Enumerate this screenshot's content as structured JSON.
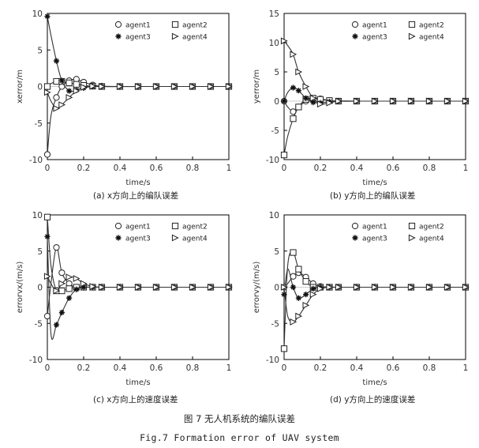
{
  "figure": {
    "caption_cn": "图 7 无人机系统的编队误差",
    "caption_en": "Fig.7 Formation error of UAV system"
  },
  "chart_data": [
    {
      "type": "line",
      "caption": "(a) x方向上的编队误差",
      "xlabel": "time/s",
      "ylabel": "xerror/m",
      "xlim": [
        0,
        1
      ],
      "ylim": [
        -10,
        10
      ],
      "x_ticks": [
        "0",
        "0.2",
        "0.4",
        "0.6",
        "0.8",
        "1"
      ],
      "y_ticks": [
        "10",
        "5",
        "0",
        "-5",
        "-10"
      ],
      "legend_position": "top-right",
      "series": [
        {
          "name": "agent1",
          "marker": "circle",
          "x": [
            0,
            0.02,
            0.05,
            0.08,
            0.12,
            0.16,
            0.2,
            0.25,
            0.3,
            0.4,
            0.5,
            0.6,
            0.7,
            0.8,
            0.9,
            1
          ],
          "y": [
            -9.3,
            -4,
            -1.5,
            0,
            0.8,
            1.0,
            0.6,
            0.2,
            0.05,
            0,
            0,
            0,
            0,
            0,
            0,
            0
          ]
        },
        {
          "name": "agent2",
          "marker": "square",
          "x": [
            0,
            0.02,
            0.05,
            0.08,
            0.12,
            0.16,
            0.2,
            0.25,
            0.3,
            0.4,
            0.5,
            0.6,
            0.7,
            0.8,
            0.9,
            1
          ],
          "y": [
            0,
            0.4,
            0.7,
            0.7,
            0.5,
            0.3,
            0.15,
            0.05,
            0,
            0,
            0,
            0,
            0,
            0,
            0,
            0
          ]
        },
        {
          "name": "agent3",
          "marker": "asterisk",
          "x": [
            0,
            0.02,
            0.05,
            0.08,
            0.12,
            0.16,
            0.2,
            0.25,
            0.3,
            0.4,
            0.5,
            0.6,
            0.7,
            0.8,
            0.9,
            1
          ],
          "y": [
            9.6,
            7,
            3.5,
            0.8,
            -0.6,
            -0.5,
            -0.2,
            0,
            0,
            0,
            0,
            0,
            0,
            0,
            0,
            0
          ]
        },
        {
          "name": "agent4",
          "marker": "triangle-right",
          "x": [
            0,
            0.02,
            0.05,
            0.08,
            0.12,
            0.16,
            0.2,
            0.25,
            0.3,
            0.4,
            0.5,
            0.6,
            0.7,
            0.8,
            0.9,
            1
          ],
          "y": [
            -0.8,
            -2,
            -3,
            -2.5,
            -1.5,
            -0.6,
            -0.1,
            0.05,
            0,
            0,
            0,
            0,
            0,
            0,
            0,
            0
          ]
        }
      ]
    },
    {
      "type": "line",
      "caption": "(b) y方向上的编队误差",
      "xlabel": "time/s",
      "ylabel": "yerror/m",
      "xlim": [
        0,
        1
      ],
      "ylim": [
        -10,
        15
      ],
      "x_ticks": [
        "0",
        "0.2",
        "0.4",
        "0.6",
        "0.8",
        "1"
      ],
      "y_ticks": [
        "15",
        "10",
        "5",
        "0",
        "-5",
        "-10"
      ],
      "legend_position": "top-right",
      "series": [
        {
          "name": "agent1",
          "marker": "circle",
          "x": [
            0,
            0.02,
            0.05,
            0.08,
            0.12,
            0.16,
            0.2,
            0.25,
            0.3,
            0.4,
            0.5,
            0.6,
            0.7,
            0.8,
            0.9,
            1
          ],
          "y": [
            0,
            -1,
            -1.8,
            -1,
            0,
            0.5,
            0.4,
            0.1,
            0,
            0,
            0,
            0,
            0,
            0,
            0,
            0
          ]
        },
        {
          "name": "agent2",
          "marker": "square",
          "x": [
            0,
            0.02,
            0.05,
            0.08,
            0.12,
            0.16,
            0.2,
            0.25,
            0.3,
            0.4,
            0.5,
            0.6,
            0.7,
            0.8,
            0.9,
            1
          ],
          "y": [
            -9.2,
            -6,
            -3,
            -1,
            0.3,
            0.5,
            0.3,
            0.1,
            0,
            0,
            0,
            0,
            0,
            0,
            0,
            0
          ]
        },
        {
          "name": "agent3",
          "marker": "asterisk",
          "x": [
            0,
            0.02,
            0.05,
            0.08,
            0.12,
            0.16,
            0.2,
            0.25,
            0.3,
            0.4,
            0.5,
            0.6,
            0.7,
            0.8,
            0.9,
            1
          ],
          "y": [
            0,
            1.5,
            2.3,
            1.8,
            0.5,
            -0.2,
            -0.3,
            -0.1,
            0,
            0,
            0,
            0,
            0,
            0,
            0,
            0
          ]
        },
        {
          "name": "agent4",
          "marker": "triangle-right",
          "x": [
            0,
            0.02,
            0.05,
            0.08,
            0.12,
            0.16,
            0.2,
            0.25,
            0.3,
            0.4,
            0.5,
            0.6,
            0.7,
            0.8,
            0.9,
            1
          ],
          "y": [
            10.3,
            9.5,
            8,
            5,
            2.5,
            0.5,
            -0.5,
            -0.3,
            0,
            0,
            0,
            0,
            0,
            0,
            0,
            0
          ]
        }
      ]
    },
    {
      "type": "line",
      "caption": "(c) x方向上的速度误差",
      "xlabel": "time/s",
      "ylabel": "errorvx/(m/s)",
      "xlim": [
        0,
        1
      ],
      "ylim": [
        -10,
        10
      ],
      "x_ticks": [
        "0",
        "0.2",
        "0.4",
        "0.6",
        "0.8",
        "1"
      ],
      "y_ticks": [
        "10",
        "5",
        "0",
        "-5",
        "-10"
      ],
      "legend_position": "top-right",
      "series": [
        {
          "name": "agent1",
          "marker": "circle",
          "x": [
            0,
            0.02,
            0.05,
            0.08,
            0.12,
            0.16,
            0.2,
            0.25,
            0.3,
            0.4,
            0.5,
            0.6,
            0.7,
            0.8,
            0.9,
            1
          ],
          "y": [
            -4,
            0.5,
            5.5,
            2,
            0.5,
            0,
            0,
            0,
            0,
            0,
            0,
            0,
            0,
            0,
            0,
            0
          ]
        },
        {
          "name": "agent2",
          "marker": "square",
          "x": [
            0,
            0.02,
            0.05,
            0.08,
            0.12,
            0.16,
            0.2,
            0.25,
            0.3,
            0.4,
            0.5,
            0.6,
            0.7,
            0.8,
            0.9,
            1
          ],
          "y": [
            9.7,
            3,
            -0.5,
            -0.5,
            -0.2,
            0,
            0,
            0,
            0,
            0,
            0,
            0,
            0,
            0,
            0,
            0
          ]
        },
        {
          "name": "agent3",
          "marker": "asterisk",
          "x": [
            0,
            0.02,
            0.05,
            0.08,
            0.12,
            0.16,
            0.2,
            0.25,
            0.3,
            0.4,
            0.5,
            0.6,
            0.7,
            0.8,
            0.9,
            1
          ],
          "y": [
            7,
            -6.5,
            -5.2,
            -3.5,
            -1.5,
            -0.3,
            0,
            0,
            0,
            0,
            0,
            0,
            0,
            0,
            0,
            0
          ]
        },
        {
          "name": "agent4",
          "marker": "triangle-right",
          "x": [
            0,
            0.02,
            0.05,
            0.08,
            0.12,
            0.16,
            0.2,
            0.25,
            0.3,
            0.4,
            0.5,
            0.6,
            0.7,
            0.8,
            0.9,
            1
          ],
          "y": [
            1.5,
            0.5,
            -0.5,
            0.5,
            1.4,
            1.2,
            0.5,
            0.1,
            0,
            0,
            0,
            0,
            0,
            0,
            0,
            0
          ]
        }
      ]
    },
    {
      "type": "line",
      "caption": "(d) y方向上的速度误差",
      "xlabel": "time/s",
      "ylabel": "errorvy/(m/s)",
      "xlim": [
        0,
        1
      ],
      "ylim": [
        -10,
        10
      ],
      "x_ticks": [
        "0",
        "0.2",
        "0.4",
        "0.6",
        "0.8",
        "1"
      ],
      "y_ticks": [
        "10",
        "5",
        "0",
        "-5",
        "-10"
      ],
      "legend_position": "top-right",
      "series": [
        {
          "name": "agent1",
          "marker": "circle",
          "x": [
            0,
            0.02,
            0.05,
            0.08,
            0.12,
            0.16,
            0.2,
            0.25,
            0.3,
            0.4,
            0.5,
            0.6,
            0.7,
            0.8,
            0.9,
            1
          ],
          "y": [
            0,
            0.5,
            1.5,
            2,
            1.4,
            0.5,
            0.1,
            0,
            0,
            0,
            0,
            0,
            0,
            0,
            0,
            0
          ]
        },
        {
          "name": "agent2",
          "marker": "square",
          "x": [
            0,
            0.02,
            0.05,
            0.08,
            0.12,
            0.16,
            0.2,
            0.25,
            0.3,
            0.4,
            0.5,
            0.6,
            0.7,
            0.8,
            0.9,
            1
          ],
          "y": [
            -8.5,
            3,
            4.8,
            2.5,
            0.8,
            0,
            0,
            0,
            0,
            0,
            0,
            0,
            0,
            0,
            0,
            0
          ]
        },
        {
          "name": "agent3",
          "marker": "asterisk",
          "x": [
            0,
            0.02,
            0.05,
            0.08,
            0.12,
            0.16,
            0.2,
            0.25,
            0.3,
            0.4,
            0.5,
            0.6,
            0.7,
            0.8,
            0.9,
            1
          ],
          "y": [
            -1,
            2.5,
            0,
            -1.5,
            -1,
            -0.2,
            0,
            0,
            0,
            0,
            0,
            0,
            0,
            0,
            0,
            0
          ]
        },
        {
          "name": "agent4",
          "marker": "triangle-right",
          "x": [
            0,
            0.02,
            0.05,
            0.08,
            0.12,
            0.16,
            0.2,
            0.25,
            0.3,
            0.4,
            0.5,
            0.6,
            0.7,
            0.8,
            0.9,
            1
          ],
          "y": [
            0,
            -4,
            -4.8,
            -4,
            -2.5,
            -1,
            -0.2,
            0,
            0,
            0,
            0,
            0,
            0,
            0,
            0,
            0
          ]
        }
      ]
    }
  ]
}
